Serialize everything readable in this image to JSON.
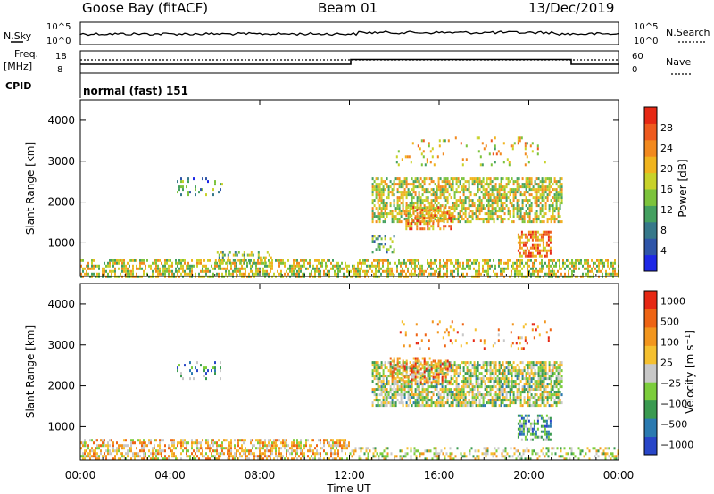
{
  "header": {
    "station": "Goose Bay (fitACF)",
    "beam": "Beam 01",
    "date": "13/Dec/2019"
  },
  "strip_labels": {
    "nsky": "N.Sky",
    "nsky_ticks": [
      "10^5",
      "10^0"
    ],
    "nsearch": "N.Search",
    "nsearch_ticks": [
      "10^5",
      "10^0"
    ],
    "freq_label": "Freq.",
    "freq_unit": "[MHz]",
    "freq_ticks": [
      "18",
      "8"
    ],
    "nave": "Nave",
    "nave_ticks": [
      "60",
      "0"
    ],
    "cpid_label": "CPID",
    "cpid_value": "normal (fast) 151"
  },
  "chart_data": [
    {
      "type": "heatmap",
      "name": "power",
      "ylabel": "Slant Range [km]",
      "xlabel": "",
      "x_ticks": [
        "00:00",
        "04:00",
        "08:00",
        "12:00",
        "16:00",
        "20:00",
        "00:00"
      ],
      "y_ticks": [
        1000,
        2000,
        3000,
        4000
      ],
      "xlim_hours": [
        0,
        24
      ],
      "ylim_km": [
        180,
        4500
      ],
      "colorbar": {
        "label": "Power [dB]",
        "ticks": [
          "4",
          "8",
          "12",
          "16",
          "20",
          "24",
          "28"
        ],
        "colors": [
          "#1e28e6",
          "#2f55a8",
          "#36788a",
          "#44a060",
          "#7cc33c",
          "#c8d22a",
          "#f0b41e",
          "#f2891e",
          "#ee5a1e",
          "#e62814"
        ]
      },
      "regions": [
        {
          "t0": 0.0,
          "t1": 24.0,
          "r0": 180,
          "r1": 600,
          "level": 0.55,
          "density": 0.55
        },
        {
          "t0": 6.0,
          "t1": 8.5,
          "r0": 500,
          "r1": 800,
          "level": 0.45,
          "density": 0.35
        },
        {
          "t0": 13.0,
          "t1": 21.5,
          "r0": 1500,
          "r1": 2600,
          "level": 0.55,
          "density": 0.6
        },
        {
          "t0": 14.5,
          "t1": 16.5,
          "r0": 1350,
          "r1": 1900,
          "level": 0.75,
          "density": 0.5
        },
        {
          "t0": 19.5,
          "t1": 21.0,
          "r0": 700,
          "r1": 1300,
          "level": 0.8,
          "density": 0.6
        },
        {
          "t0": 4.3,
          "t1": 6.3,
          "r0": 2200,
          "r1": 2600,
          "level": 0.3,
          "density": 0.25
        },
        {
          "t0": 13.0,
          "t1": 14.0,
          "r0": 800,
          "r1": 1200,
          "level": 0.35,
          "density": 0.35
        },
        {
          "t0": 14.0,
          "t1": 21.0,
          "r0": 2900,
          "r1": 3600,
          "level": 0.6,
          "density": 0.08
        }
      ]
    },
    {
      "type": "heatmap",
      "name": "velocity",
      "ylabel": "Slant Range [km]",
      "xlabel": "Time UT",
      "x_ticks": [
        "00:00",
        "04:00",
        "08:00",
        "12:00",
        "16:00",
        "20:00",
        "00:00"
      ],
      "y_ticks": [
        1000,
        2000,
        3000,
        4000
      ],
      "xlim_hours": [
        0,
        24
      ],
      "ylim_km": [
        180,
        4500
      ],
      "colorbar": {
        "label": "Velocity [m s^-1]",
        "ticks": [
          "1000",
          "500",
          "100",
          "25",
          "−25",
          "−100",
          "−500",
          "−1000"
        ],
        "colors": [
          "#2846c8",
          "#2b7ab0",
          "#3a9a50",
          "#7ccd3c",
          "#c8c8c8",
          "#f5c030",
          "#f2961e",
          "#ee6414",
          "#e62814"
        ]
      },
      "regions": [
        {
          "t0": 0.0,
          "t1": 12.0,
          "r0": 180,
          "r1": 700,
          "level": 0.62,
          "density": 0.55
        },
        {
          "t0": 12.0,
          "t1": 24.0,
          "r0": 180,
          "r1": 500,
          "level": 0.5,
          "density": 0.3
        },
        {
          "t0": 13.0,
          "t1": 21.5,
          "r0": 1500,
          "r1": 2600,
          "level": 0.45,
          "density": 0.7
        },
        {
          "t0": 13.8,
          "t1": 16.5,
          "r0": 2100,
          "r1": 2700,
          "level": 0.8,
          "density": 0.35
        },
        {
          "t0": 19.5,
          "t1": 21.0,
          "r0": 700,
          "r1": 1300,
          "level": 0.3,
          "density": 0.5
        },
        {
          "t0": 4.3,
          "t1": 6.3,
          "r0": 2200,
          "r1": 2600,
          "level": 0.3,
          "density": 0.2
        },
        {
          "t0": 14.0,
          "t1": 21.0,
          "r0": 2900,
          "r1": 3600,
          "level": 0.75,
          "density": 0.08
        }
      ]
    }
  ]
}
